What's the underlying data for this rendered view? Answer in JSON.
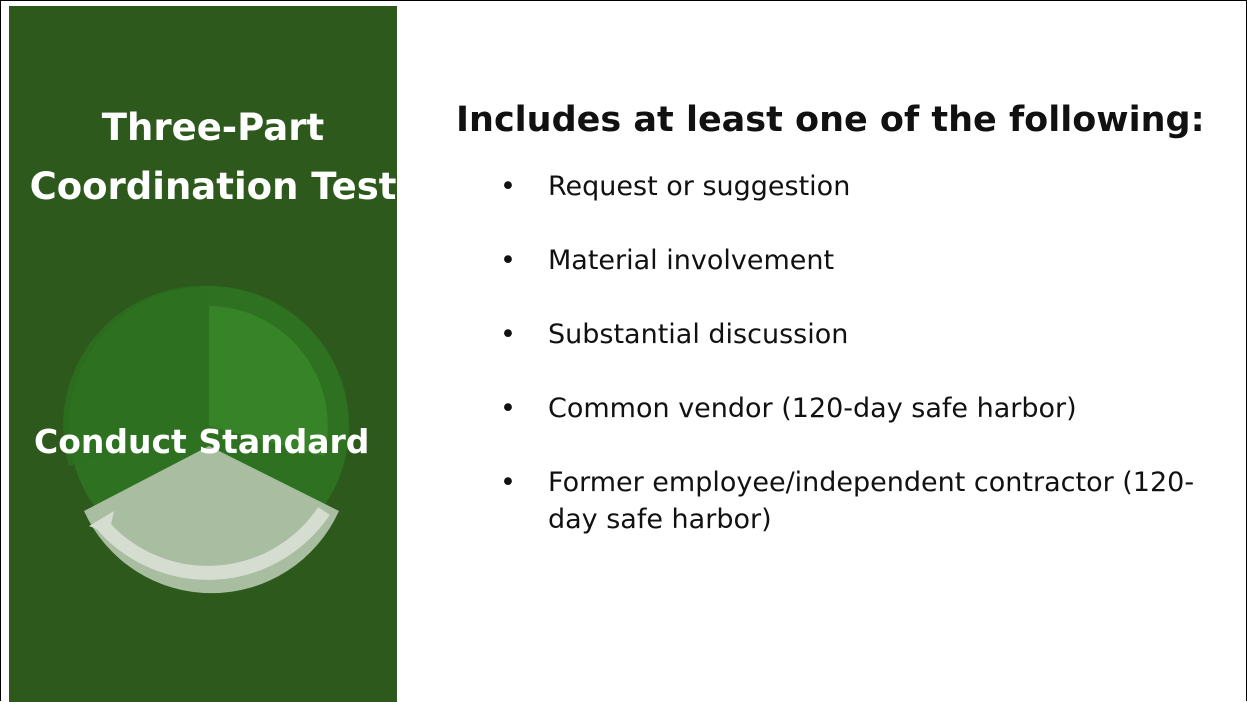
{
  "sidebar": {
    "title": "Three-Part Coordination Test",
    "diagram_label": "Conduct Standard"
  },
  "content": {
    "heading": "Includes at least one of the following:",
    "items": [
      "Request or suggestion",
      "Material involvement",
      "Substantial discussion",
      "Common vendor (120-day safe harbor)",
      "Former employee/independent contractor (120-day safe harbor)"
    ]
  }
}
